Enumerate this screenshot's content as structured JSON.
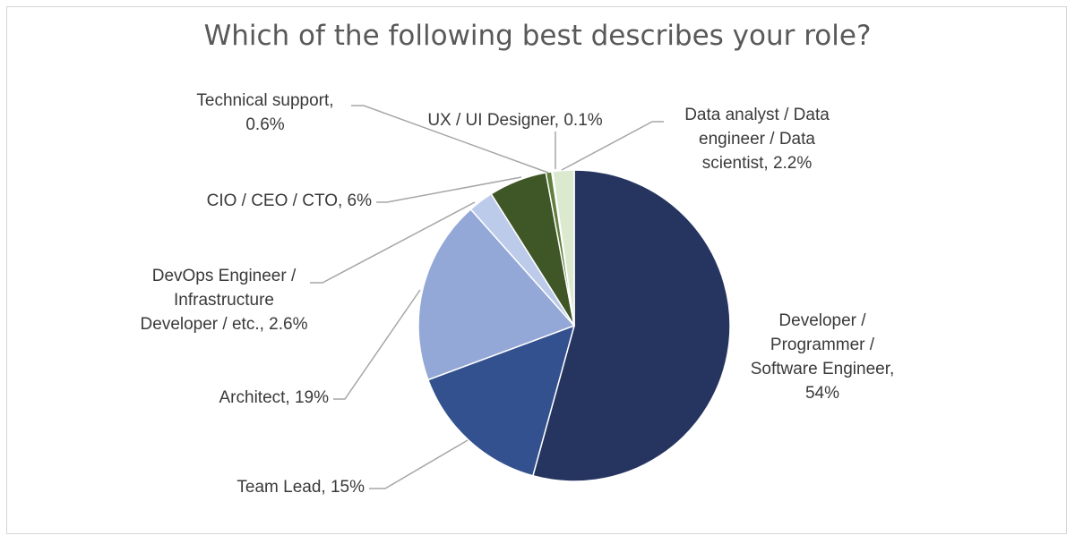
{
  "chart_data": {
    "type": "pie",
    "title": "Which of the following best describes your role?",
    "slices": [
      {
        "label": "Developer / Programmer / Software Engineer, 54%",
        "value": 54,
        "color": "#263560"
      },
      {
        "label": "Team Lead, 15%",
        "value": 15,
        "color": "#33518f"
      },
      {
        "label": "Architect, 19%",
        "value": 19,
        "color": "#94a8d7"
      },
      {
        "label": "DevOps Engineer / Infrastructure Developer / etc., 2.6%",
        "value": 2.6,
        "color": "#bccbea"
      },
      {
        "label": "CIO / CEO / CTO, 6%",
        "value": 6,
        "color": "#3f5627"
      },
      {
        "label": "Technical support, 0.6%",
        "value": 0.6,
        "color": "#5f7f3c"
      },
      {
        "label": "UX / UI Designer, 0.1%",
        "value": 0.1,
        "color": "#9cba73"
      },
      {
        "label": "Data analyst / Data engineer / Data scientist, 2.2%",
        "value": 2.2,
        "color": "#dbe9cf"
      }
    ],
    "legend": "none"
  }
}
